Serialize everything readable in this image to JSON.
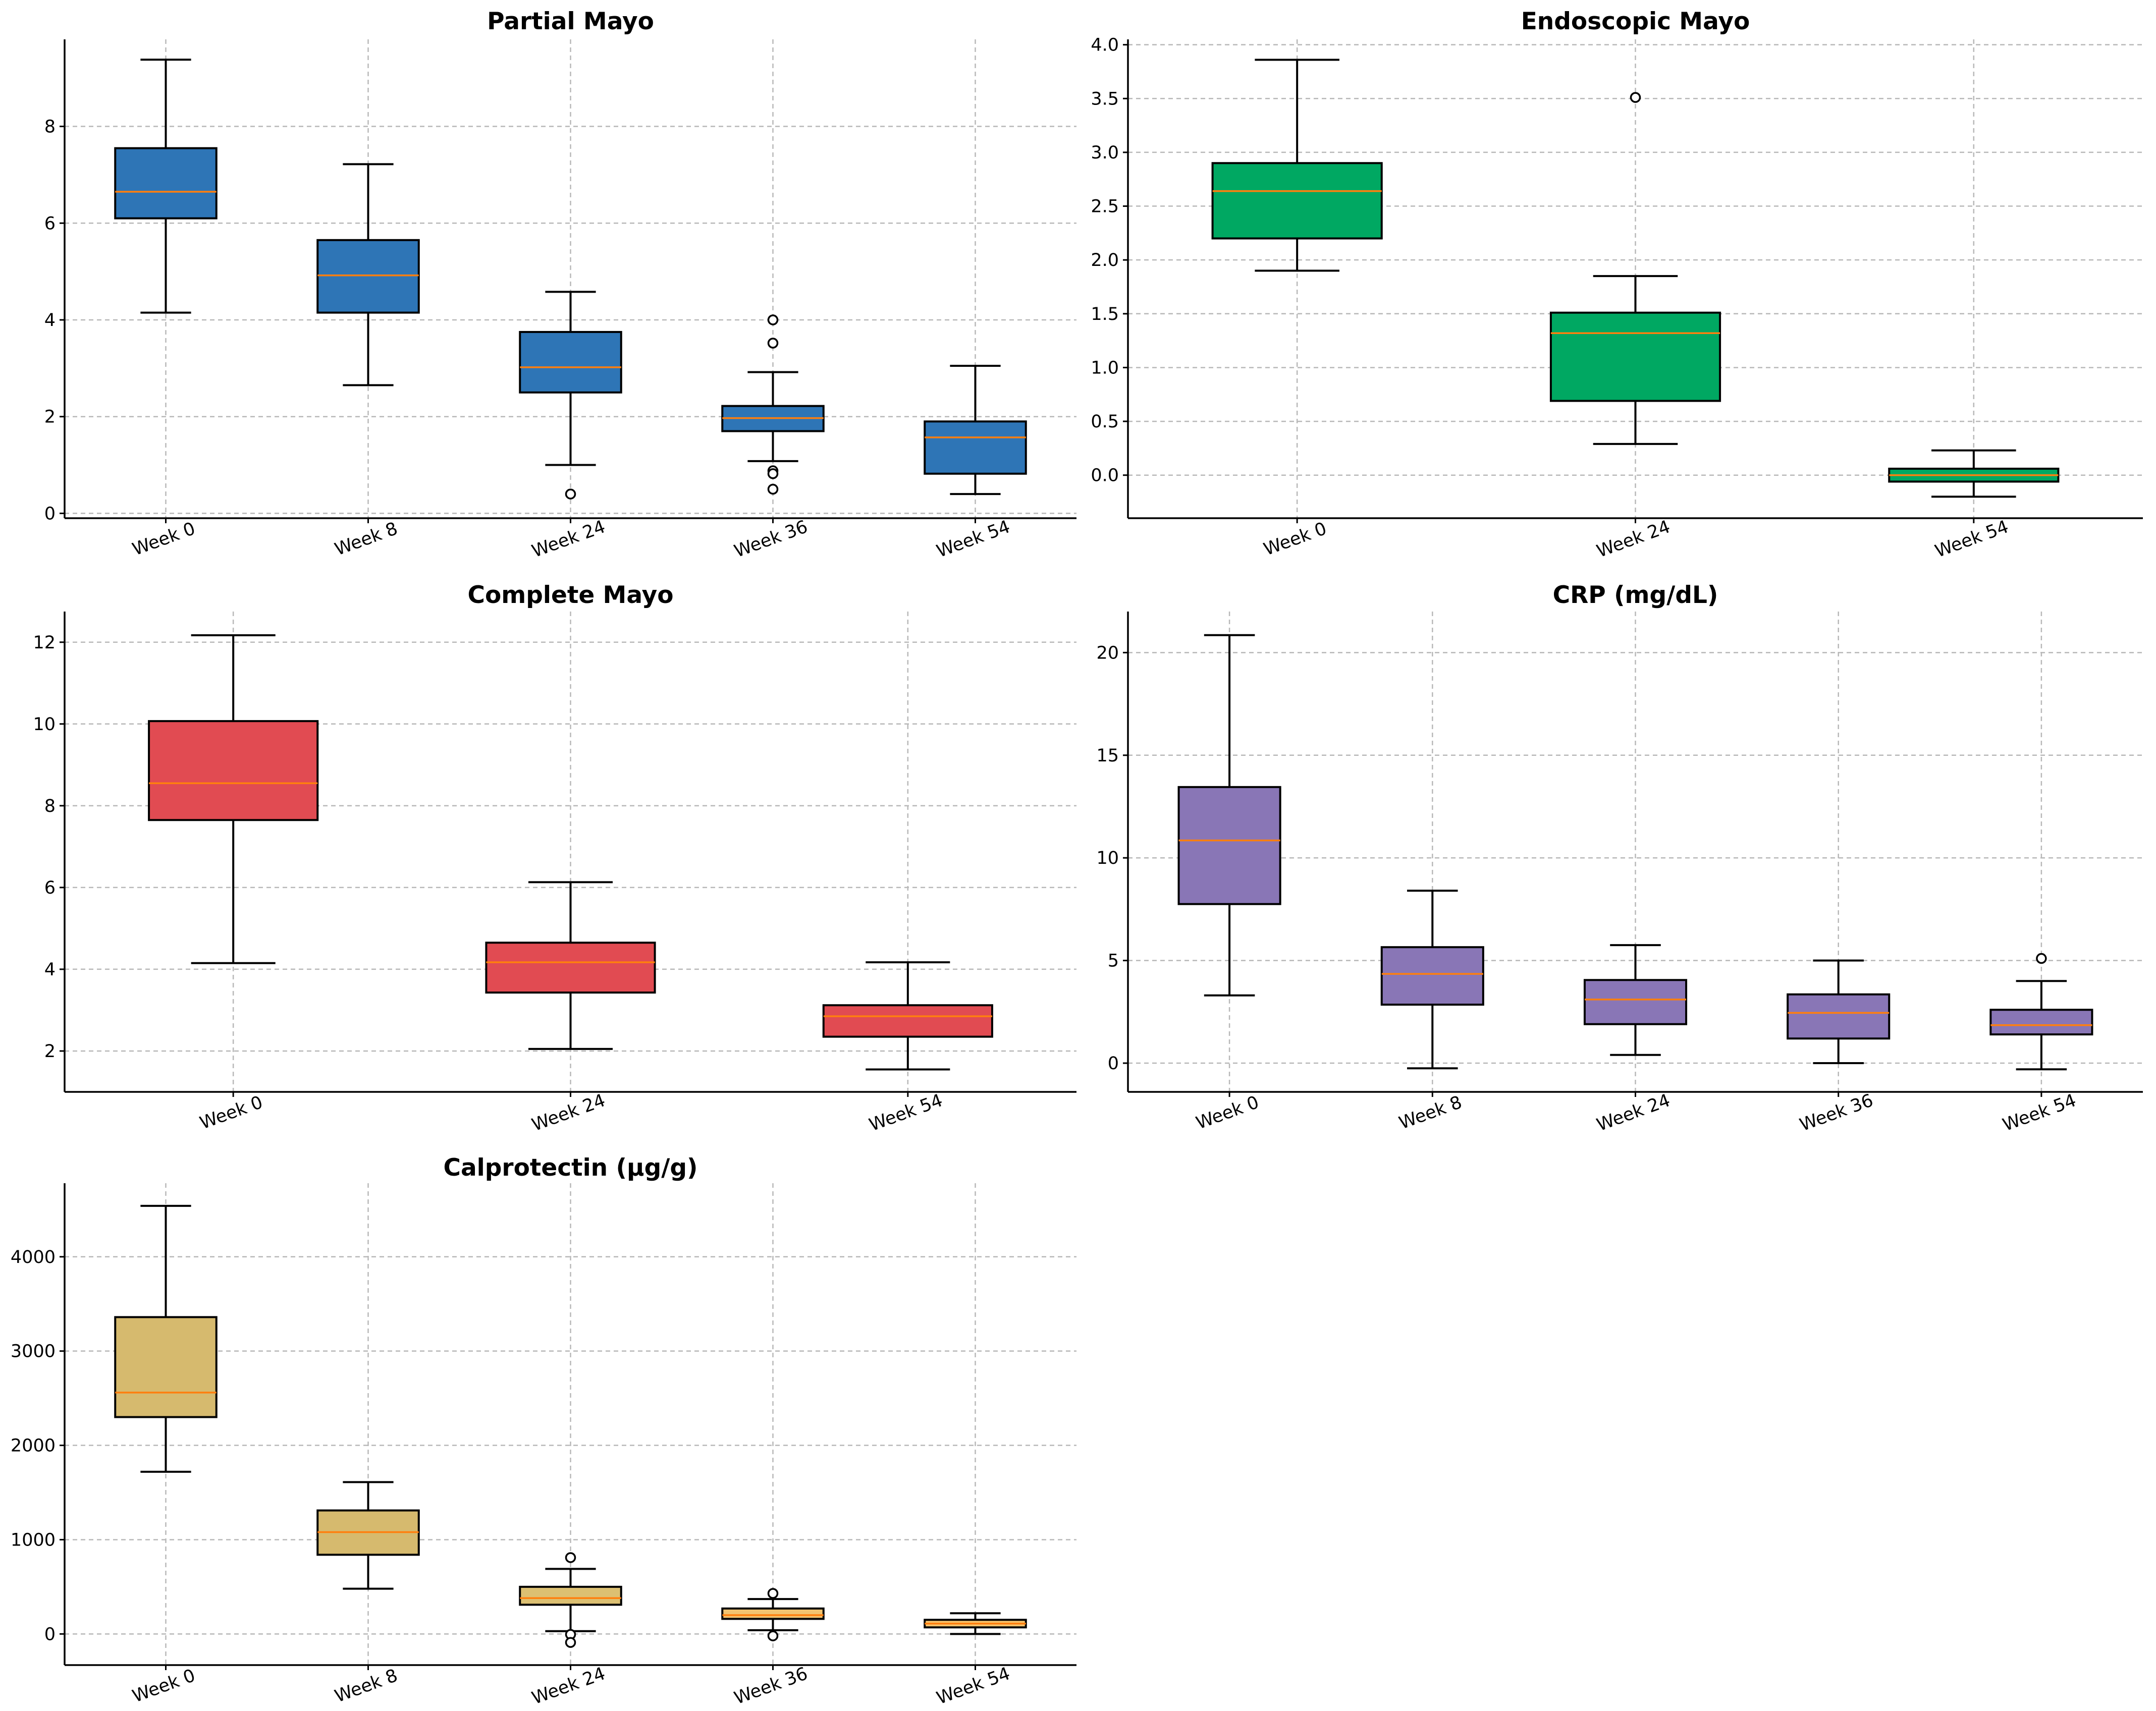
{
  "chart_data": [
    {
      "type": "box",
      "title": "Partial Mayo",
      "color": "#2e75b6",
      "categories": [
        "Week 0",
        "Week 8",
        "Week 24",
        "Week 36",
        "Week 54"
      ],
      "ylim": [
        -0.1,
        9.8
      ],
      "yticks": [
        0,
        2,
        4,
        6,
        8
      ],
      "ytick_labels": [
        "0",
        "2",
        "4",
        "6",
        "8"
      ],
      "boxes": [
        {
          "whislo": 4.15,
          "q1": 6.1,
          "med": 6.65,
          "q3": 7.55,
          "whishi": 9.38,
          "fliers": []
        },
        {
          "whislo": 2.65,
          "q1": 4.15,
          "med": 4.92,
          "q3": 5.65,
          "whishi": 7.22,
          "fliers": []
        },
        {
          "whislo": 1.0,
          "q1": 2.5,
          "med": 3.02,
          "q3": 3.75,
          "whishi": 4.58,
          "fliers": [
            0.4
          ]
        },
        {
          "whislo": 1.08,
          "q1": 1.7,
          "med": 1.97,
          "q3": 2.22,
          "whishi": 2.92,
          "fliers": [
            4.0,
            3.52,
            0.88,
            0.82,
            0.5
          ]
        },
        {
          "whislo": 0.4,
          "q1": 0.82,
          "med": 1.57,
          "q3": 1.9,
          "whishi": 3.05,
          "fliers": []
        }
      ]
    },
    {
      "type": "box",
      "title": "Endoscopic Mayo",
      "color": "#00a862",
      "categories": [
        "Week 0",
        "Week 24",
        "Week 54"
      ],
      "ylim": [
        -0.4,
        4.05
      ],
      "yticks": [
        0.0,
        0.5,
        1.0,
        1.5,
        2.0,
        2.5,
        3.0,
        3.5,
        4.0
      ],
      "ytick_labels": [
        "0.0",
        "0.5",
        "1.0",
        "1.5",
        "2.0",
        "2.5",
        "3.0",
        "3.5",
        "4.0"
      ],
      "boxes": [
        {
          "whislo": 1.9,
          "q1": 2.2,
          "med": 2.64,
          "q3": 2.9,
          "whishi": 3.86,
          "fliers": []
        },
        {
          "whislo": 0.29,
          "q1": 0.69,
          "med": 1.32,
          "q3": 1.51,
          "whishi": 1.85,
          "fliers": [
            3.51
          ]
        },
        {
          "whislo": -0.2,
          "q1": -0.06,
          "med": 0.0,
          "q3": 0.06,
          "whishi": 0.23,
          "fliers": []
        }
      ]
    },
    {
      "type": "box",
      "title": "Complete Mayo",
      "color": "#e14b52",
      "categories": [
        "Week 0",
        "Week 24",
        "Week 54"
      ],
      "ylim": [
        1.0,
        12.75
      ],
      "yticks": [
        2,
        4,
        6,
        8,
        10,
        12
      ],
      "ytick_labels": [
        "2",
        "4",
        "6",
        "8",
        "10",
        "12"
      ],
      "boxes": [
        {
          "whislo": 4.15,
          "q1": 7.65,
          "med": 8.55,
          "q3": 10.07,
          "whishi": 12.17,
          "fliers": []
        },
        {
          "whislo": 2.05,
          "q1": 3.43,
          "med": 4.17,
          "q3": 4.65,
          "whishi": 6.13,
          "fliers": []
        },
        {
          "whislo": 1.55,
          "q1": 2.35,
          "med": 2.85,
          "q3": 3.12,
          "whishi": 4.17,
          "fliers": []
        }
      ]
    },
    {
      "type": "box",
      "title": "CRP (mg/dL)",
      "color": "#8976b6",
      "categories": [
        "Week 0",
        "Week 8",
        "Week 24",
        "Week 36",
        "Week 54"
      ],
      "ylim": [
        -1.4,
        22.0
      ],
      "yticks": [
        0,
        5,
        10,
        15,
        20
      ],
      "ytick_labels": [
        "0",
        "5",
        "10",
        "15",
        "20"
      ],
      "boxes": [
        {
          "whislo": 3.3,
          "q1": 7.75,
          "med": 10.85,
          "q3": 13.45,
          "whishi": 20.85,
          "fliers": []
        },
        {
          "whislo": -0.25,
          "q1": 2.85,
          "med": 4.35,
          "q3": 5.65,
          "whishi": 8.4,
          "fliers": []
        },
        {
          "whislo": 0.4,
          "q1": 1.9,
          "med": 3.1,
          "q3": 4.05,
          "whishi": 5.75,
          "fliers": []
        },
        {
          "whislo": 0.0,
          "q1": 1.2,
          "med": 2.45,
          "q3": 3.35,
          "whishi": 5.0,
          "fliers": []
        },
        {
          "whislo": -0.3,
          "q1": 1.4,
          "med": 1.85,
          "q3": 2.6,
          "whishi": 4.0,
          "fliers": [
            5.1
          ]
        }
      ]
    },
    {
      "type": "box",
      "title": "Calprotectin (µg/g)",
      "color": "#d6ba6e",
      "categories": [
        "Week 0",
        "Week 8",
        "Week 24",
        "Week 36",
        "Week 54"
      ],
      "ylim": [
        -330,
        4780
      ],
      "yticks": [
        0,
        1000,
        2000,
        3000,
        4000
      ],
      "ytick_labels": [
        "0",
        "1000",
        "2000",
        "3000",
        "4000"
      ],
      "boxes": [
        {
          "whislo": 1720,
          "q1": 2300,
          "med": 2560,
          "q3": 3360,
          "whishi": 4540,
          "fliers": [],
          "color": "#d6ba6e"
        },
        {
          "whislo": 480,
          "q1": 840,
          "med": 1080,
          "q3": 1310,
          "whishi": 1610,
          "fliers": [],
          "color": "#d6ba6e"
        },
        {
          "whislo": 30,
          "q1": 310,
          "med": 380,
          "q3": 500,
          "whishi": 690,
          "fliers": [
            810,
            -5,
            -90
          ],
          "color": "#dcc072"
        },
        {
          "whislo": 40,
          "q1": 160,
          "med": 200,
          "q3": 270,
          "whishi": 370,
          "fliers": [
            430,
            -20
          ],
          "color": "#f2c471"
        },
        {
          "whislo": 0,
          "q1": 70,
          "med": 110,
          "q3": 150,
          "whishi": 220,
          "fliers": [],
          "color": "#f7c26a"
        }
      ]
    }
  ]
}
